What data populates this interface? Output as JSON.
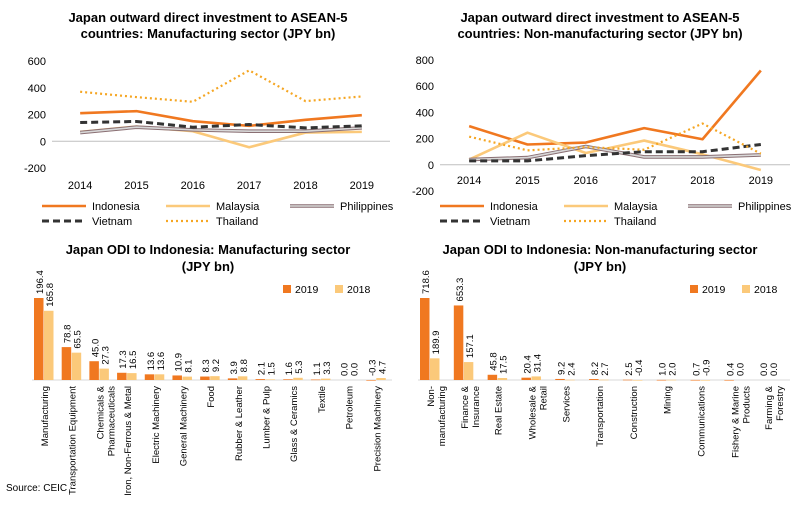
{
  "source": "Source: CEIC",
  "colors": {
    "Indonesia": "#f07820",
    "Malaysia": "#fbc97a",
    "Philippines": "#a8a8a8",
    "Vietnam": "#333333",
    "Thailand": "#f5a623",
    "bar2019": "#f07820",
    "bar2018": "#fbc97a"
  },
  "chart_data": [
    {
      "id": "c1",
      "type": "line",
      "title": [
        "Japan outward direct investment to ASEAN-5",
        "countries: Manufacturing sector (JPY bn)"
      ],
      "x": [
        "2014",
        "2015",
        "2016",
        "2017",
        "2018",
        "2019"
      ],
      "ylim": [
        -200,
        600
      ],
      "yticks": [
        -200,
        0,
        200,
        400,
        600
      ],
      "grid": false,
      "legend": "bottom",
      "series": [
        {
          "name": "Indonesia",
          "values": [
            210,
            225,
            150,
            115,
            160,
            195
          ]
        },
        {
          "name": "Malaysia",
          "values": [
            70,
            110,
            75,
            -45,
            65,
            70
          ]
        },
        {
          "name": "Philippines",
          "values": [
            65,
            105,
            85,
            75,
            75,
            100
          ]
        },
        {
          "name": "Vietnam",
          "values": [
            140,
            148,
            105,
            125,
            100,
            115
          ]
        },
        {
          "name": "Thailand",
          "values": [
            370,
            330,
            295,
            530,
            300,
            335
          ]
        }
      ]
    },
    {
      "id": "c2",
      "type": "line",
      "title": [
        "Japan outward direct investment to ASEAN-5",
        "countries: Non-manufacturing sector (JPY bn)"
      ],
      "x": [
        "2014",
        "2015",
        "2016",
        "2017",
        "2018",
        "2019"
      ],
      "ylim": [
        -200,
        800
      ],
      "yticks": [
        -200,
        0,
        200,
        400,
        600,
        800
      ],
      "grid": false,
      "legend": "bottom",
      "series": [
        {
          "name": "Indonesia",
          "values": [
            295,
            155,
            170,
            280,
            195,
            720
          ]
        },
        {
          "name": "Malaysia",
          "values": [
            40,
            245,
            90,
            185,
            80,
            -40
          ]
        },
        {
          "name": "Philippines",
          "values": [
            40,
            55,
            140,
            60,
            60,
            75
          ]
        },
        {
          "name": "Vietnam",
          "values": [
            30,
            30,
            70,
            100,
            100,
            155
          ]
        },
        {
          "name": "Thailand",
          "values": [
            215,
            110,
            135,
            115,
            315,
            85
          ]
        }
      ]
    },
    {
      "id": "c3",
      "type": "bar",
      "title": [
        "Japan ODI to Indonesia: Manufacturing sector",
        "(JPY bn)"
      ],
      "categories": [
        "Manufacturing",
        "Transportation Equipment",
        "Chemicals &|Pharmaceuticals",
        "Iron, Non-Ferrous & Metal",
        "Electric Machinery",
        "General Machinery",
        "Food",
        "Rubber & Leather",
        "Lumber & Pulp",
        "Glass & Ceramics",
        "Textile",
        "Petroleum",
        "Precision Machinery"
      ],
      "series": [
        {
          "name": "2019",
          "values": [
            196.4,
            78.8,
            45.0,
            17.3,
            13.6,
            10.9,
            8.3,
            3.9,
            2.1,
            1.6,
            1.1,
            0.0,
            -0.3
          ]
        },
        {
          "name": "2018",
          "values": [
            165.8,
            65.5,
            27.3,
            16.5,
            13.6,
            8.1,
            9.2,
            8.8,
            1.5,
            5.3,
            3.3,
            0.0,
            4.7
          ]
        }
      ],
      "labels": [
        [
          "196.4",
          "165.8"
        ],
        [
          "78.8",
          "65.5"
        ],
        [
          "45.0",
          "27.3"
        ],
        [
          "17.3",
          "16.5"
        ],
        [
          "13.6",
          "13.6"
        ],
        [
          "10.9",
          "8.1"
        ],
        [
          "8.3",
          "9.2"
        ],
        [
          "3.9",
          "8.8"
        ],
        [
          "2.1",
          "1.5"
        ],
        [
          "1.6",
          "5.3"
        ],
        [
          "1.1",
          "3.3"
        ],
        [
          "0.0",
          "0.0"
        ],
        [
          "-0.3",
          "4.7"
        ]
      ],
      "legend": "top-right"
    },
    {
      "id": "c4",
      "type": "bar",
      "title": [
        "Japan ODI to Indonesia: Non-manufacturing sector",
        "(JPY bn)"
      ],
      "categories": [
        "Non-|manufacturing",
        "Finance &|Insurance",
        "Real Estate",
        "Wholesale &|Retail",
        "Services",
        "Transportation",
        "Construction",
        "Mining",
        "Communications",
        "Fishery & Marine|Products",
        "Farming &|Forestry"
      ],
      "series": [
        {
          "name": "2019",
          "values": [
            718.6,
            653.3,
            45.8,
            20.4,
            9.2,
            8.2,
            2.5,
            1.0,
            0.7,
            0.4,
            0.0
          ]
        },
        {
          "name": "2018",
          "values": [
            189.9,
            157.1,
            17.5,
            31.4,
            2.4,
            2.7,
            -0.4,
            2.0,
            -0.9,
            0.0,
            0.0
          ]
        }
      ],
      "labels": [
        [
          "718.6",
          "189.9"
        ],
        [
          "653.3",
          "157.1"
        ],
        [
          "45.8",
          "17.5"
        ],
        [
          "20.4",
          "31.4"
        ],
        [
          "9.2",
          "2.4"
        ],
        [
          "8.2",
          "2.7"
        ],
        [
          "2.5",
          "-0.4"
        ],
        [
          "1.0",
          "2.0"
        ],
        [
          "0.7",
          "-0.9"
        ],
        [
          "0.4",
          "0.0"
        ],
        [
          "0.0",
          "0.0"
        ]
      ],
      "legend": "top-right"
    }
  ]
}
